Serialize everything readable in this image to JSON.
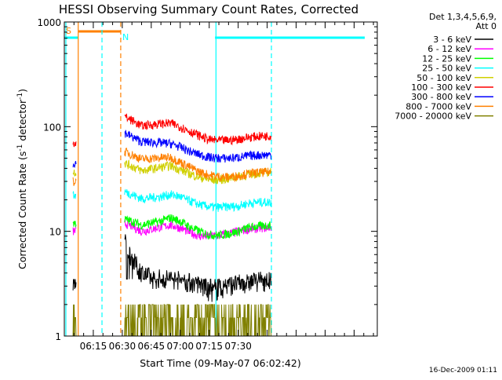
{
  "chart_data": {
    "type": "line",
    "title": "HESSI Observing Summary Count Rates, Corrected",
    "xlabel": "Start Time (09-May-07 06:02:42)",
    "ylabel_main": "Corrected Count Rate (s",
    "ylabel_sup1": "-1",
    "ylabel_mid": " detector",
    "ylabel_sup2": "-1",
    "ylabel_end": ")",
    "yscale": "log",
    "ylim": [
      1,
      1000
    ],
    "xlim_minutes": [
      360,
      522
    ],
    "x_ticks": [
      {
        "label": "06:15",
        "minute": 375
      },
      {
        "label": "06:30",
        "minute": 390
      },
      {
        "label": "06:45",
        "minute": 405
      },
      {
        "label": "07:00",
        "minute": 420
      },
      {
        "label": "07:15",
        "minute": 435
      },
      {
        "label": "07:30",
        "minute": 450
      }
    ],
    "y_ticks": [
      {
        "label": "1",
        "value": 1
      },
      {
        "label": "10",
        "value": 10
      },
      {
        "label": "100",
        "value": 100
      },
      {
        "label": "1000",
        "value": 1000
      }
    ],
    "legend_title": [
      "Det 1,3,4,5,6,9,",
      "Att 0"
    ],
    "legend_position": "right",
    "footer_stamp": "16-Dec-2009 01:11",
    "flags": {
      "saa_label": "S",
      "night_label": "N",
      "saa_color": "#ff8000",
      "night_color": "#00ffff",
      "saa_interval_minutes": [
        367.2,
        389
      ],
      "night_intervals_minutes": [
        [
          360,
          367.2
        ],
        [
          386.7,
          386.7
        ],
        [
          438,
          522
        ]
      ],
      "vertical_lines": [
        {
          "minute": 360.8,
          "color": "#00ffff",
          "style": "solid"
        },
        {
          "minute": 367.2,
          "color": "#ff8000",
          "style": "solid"
        },
        {
          "minute": 379.5,
          "color": "#00ffff",
          "style": "dashed"
        },
        {
          "minute": 389.2,
          "color": "#ff8000",
          "style": "dashed"
        },
        {
          "minute": 438.5,
          "color": "#00ffff",
          "style": "solid"
        },
        {
          "minute": 467.2,
          "color": "#00ffff",
          "style": "dashed"
        }
      ]
    },
    "data_segments_minutes": [
      [
        364.5,
        366.2
      ],
      [
        391.2,
        467
      ]
    ],
    "series": [
      {
        "name": "3 - 6 keV",
        "color": "#000000",
        "x": [
          364.5,
          366.2,
          391.2,
          393,
          396,
          400,
          405,
          415,
          425,
          430,
          435,
          440,
          445,
          450,
          455,
          460,
          467
        ],
        "y": [
          3.0,
          3.0,
          8.0,
          6.5,
          5.0,
          4.0,
          3.5,
          3.5,
          3.2,
          3.0,
          2.6,
          2.7,
          3.0,
          3.1,
          3.2,
          3.3,
          3.3
        ]
      },
      {
        "name": "6 - 12 keV",
        "color": "#ff00ff",
        "x": [
          364.5,
          366.2,
          391.2,
          395,
          400,
          410,
          415,
          420,
          425,
          430,
          435,
          440,
          445,
          450,
          455,
          460,
          467
        ],
        "y": [
          10,
          10,
          12,
          11.2,
          10,
          11,
          11.5,
          10.8,
          9.8,
          9,
          9.0,
          9.2,
          9.5,
          10,
          10.5,
          10.7,
          11
        ]
      },
      {
        "name": "12 - 25 keV",
        "color": "#00ff00",
        "x": [
          364.5,
          366.2,
          391.2,
          395,
          400,
          410,
          415,
          420,
          425,
          430,
          435,
          440,
          445,
          450,
          455,
          460,
          467
        ],
        "y": [
          12,
          12,
          13,
          12.5,
          11.5,
          12.5,
          13.5,
          12.5,
          11,
          10,
          9.3,
          9.2,
          9.5,
          10,
          10.8,
          11.2,
          11.5
        ]
      },
      {
        "name": "25 - 50 keV",
        "color": "#00ffff",
        "x": [
          364.5,
          366.2,
          391.2,
          395,
          400,
          410,
          415,
          420,
          425,
          430,
          435,
          440,
          445,
          450,
          455,
          460,
          467
        ],
        "y": [
          22,
          22,
          24,
          22.5,
          20.5,
          21.5,
          22.5,
          21.5,
          19.5,
          18,
          17.2,
          17,
          17.2,
          17.5,
          18.5,
          19,
          19
        ]
      },
      {
        "name": "50 - 100 keV",
        "color": "#d0d000",
        "x": [
          364.5,
          366.2,
          391.2,
          395,
          400,
          410,
          415,
          420,
          425,
          430,
          435,
          440,
          445,
          450,
          455,
          460,
          467
        ],
        "y": [
          37,
          37,
          45,
          42,
          38,
          41,
          42.5,
          39,
          35.5,
          33,
          31,
          31.2,
          32,
          33.5,
          35,
          36,
          37
        ]
      },
      {
        "name": "100 - 300 keV",
        "color": "#ff0000",
        "x": [
          364.5,
          366.2,
          391.2,
          395,
          400,
          410,
          415,
          420,
          425,
          430,
          435,
          440,
          445,
          450,
          455,
          460,
          467
        ],
        "y": [
          70,
          70,
          125,
          115,
          102,
          107,
          108,
          100,
          90,
          82,
          75,
          74,
          74,
          76,
          79,
          81,
          82
        ]
      },
      {
        "name": "300 - 800 keV",
        "color": "#0000ff",
        "x": [
          364.5,
          366.2,
          391.2,
          395,
          400,
          410,
          415,
          420,
          425,
          430,
          435,
          440,
          445,
          450,
          455,
          460,
          467
        ],
        "y": [
          45,
          45,
          88,
          80,
          72,
          70,
          69,
          64,
          58,
          54,
          51,
          50,
          50,
          51,
          52.5,
          53.5,
          54
        ]
      },
      {
        "name": "800 - 7000 keV",
        "color": "#ff8000",
        "x": [
          364.5,
          366.2,
          391.2,
          395,
          400,
          410,
          415,
          420,
          425,
          430,
          435,
          440,
          445,
          450,
          455,
          460,
          467
        ],
        "y": [
          30,
          30,
          58,
          54,
          49,
          50.5,
          51,
          46,
          41,
          37,
          34.5,
          33.5,
          33,
          34,
          35.5,
          36.5,
          37
        ]
      },
      {
        "name": "7000 - 20000 keV",
        "color": "#808000",
        "x": [
          364.5,
          366.2,
          391.2,
          467
        ],
        "y": [
          2.5,
          2.5,
          1.5,
          1.5
        ]
      }
    ]
  }
}
